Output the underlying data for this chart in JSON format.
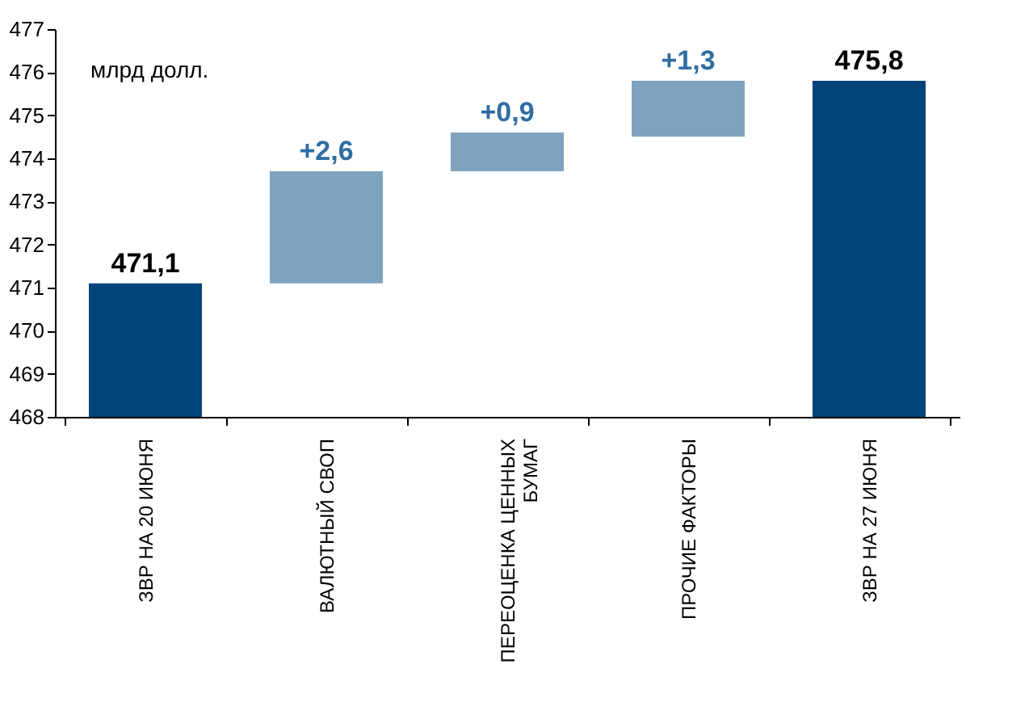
{
  "chart_data": {
    "type": "bar",
    "categories": [
      "ЗВР НА 20 ИЮНЯ",
      "ВАЛЮТНЫЙ СВОП",
      "ПЕРЕОЦЕНКА ЦЕННЫХ БУМАГ",
      "ПРОЧИЕ ФАКТОРЫ",
      "ЗВР НА 27 ИЮНЯ"
    ],
    "values": [
      471.1,
      2.6,
      0.9,
      1.3,
      475.8
    ],
    "base": [
      null,
      471.1,
      473.7,
      474.5,
      null
    ],
    "colors": [
      "#004479",
      "#7fa3bf",
      "#7fa3bf",
      "#7fa3bf",
      "#004479"
    ],
    "value_labels": [
      "471,1",
      "+2,6",
      "+0,9",
      "+1,3",
      "475,8"
    ],
    "ylim": [
      468,
      477
    ],
    "yticks": [
      468,
      469,
      470,
      471,
      472,
      473,
      474,
      475,
      476,
      477
    ],
    "annotations": [
      "млрд долл."
    ],
    "grid": false
  }
}
